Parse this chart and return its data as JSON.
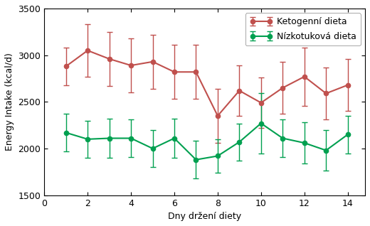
{
  "days": [
    1,
    2,
    3,
    4,
    5,
    6,
    7,
    8,
    9,
    10,
    11,
    12,
    13,
    14
  ],
  "keto_mean": [
    2880,
    3050,
    2960,
    2890,
    2930,
    2820,
    2820,
    2350,
    2620,
    2490,
    2650,
    2770,
    2590,
    2680
  ],
  "keto_err": [
    200,
    280,
    290,
    290,
    290,
    290,
    290,
    290,
    270,
    270,
    280,
    310,
    280,
    280
  ],
  "lowfat_mean": [
    2170,
    2100,
    2110,
    2110,
    2000,
    2110,
    1880,
    1920,
    2070,
    2270,
    2110,
    2060,
    1980,
    2150
  ],
  "lowfat_err": [
    200,
    200,
    210,
    200,
    200,
    210,
    200,
    180,
    200,
    320,
    200,
    220,
    220,
    200
  ],
  "keto_color": "#c0504d",
  "lowfat_color": "#00a050",
  "xlabel": "Dny držení diety",
  "ylabel": "Energy Intake (kcal/d)",
  "xlim": [
    0,
    14.8
  ],
  "ylim": [
    1500,
    3500
  ],
  "yticks": [
    1500,
    2000,
    2500,
    3000,
    3500
  ],
  "xticks": [
    0,
    2,
    4,
    6,
    8,
    10,
    12,
    14
  ],
  "legend_keto": "Ketogenní dieta",
  "legend_lowfat": "Nízkotuková dieta",
  "marker": "o",
  "markersize": 4.5,
  "linewidth": 1.5,
  "capsize": 3,
  "elinewidth": 1.0,
  "xlabel_fontsize": 9,
  "ylabel_fontsize": 9,
  "tick_fontsize": 9,
  "legend_fontsize": 9
}
